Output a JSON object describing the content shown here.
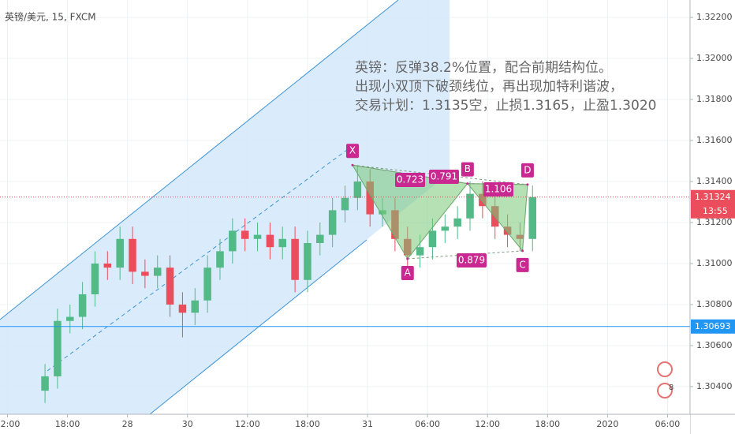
{
  "chart_data": {
    "type": "candlestick",
    "symbol": "英镑/美元, 15, FXCM",
    "annotation": [
      "英镑：反弹38.2%位置，配合前期结构位。",
      "出现小双顶下破颈线位，再出现加特利谐波，",
      "交易计划：1.3135空，止损1.3165，止盈1.3020"
    ],
    "x": [
      18,
      23,
      28,
      33,
      38,
      43,
      48,
      53,
      58,
      63,
      68,
      73,
      78,
      83,
      88,
      93,
      98,
      103,
      108,
      113,
      118,
      123,
      128,
      133,
      138,
      143,
      148,
      153,
      158,
      163,
      168,
      173,
      178,
      183,
      188,
      193,
      198,
      203,
      208,
      213
    ],
    "open": [
      1.3038,
      1.3045,
      1.3072,
      1.3074,
      1.3085,
      1.31,
      1.3098,
      1.3112,
      1.3096,
      1.3094,
      1.3098,
      1.308,
      1.3076,
      1.3082,
      1.3098,
      1.3106,
      1.3116,
      1.3112,
      1.3114,
      1.3108,
      1.3112,
      1.3092,
      1.311,
      1.3114,
      1.3126,
      1.3132,
      1.314,
      1.3124,
      1.3126,
      1.3112,
      1.3104,
      1.3108,
      1.3116,
      1.3118,
      1.3122,
      1.3134,
      1.3128,
      1.3118,
      1.3114,
      1.3112
    ],
    "high": [
      1.3051,
      1.3078,
      1.308,
      1.3091,
      1.3106,
      1.3106,
      1.3118,
      1.3118,
      1.3102,
      1.3104,
      1.3104,
      1.3086,
      1.3088,
      1.3104,
      1.3112,
      1.3122,
      1.3122,
      1.312,
      1.312,
      1.3118,
      1.3118,
      1.3116,
      1.312,
      1.3132,
      1.3138,
      1.3148,
      1.3146,
      1.3132,
      1.3132,
      1.3118,
      1.3114,
      1.3122,
      1.3124,
      1.3128,
      1.314,
      1.314,
      1.3134,
      1.3124,
      1.312,
      1.3138
    ],
    "low": [
      1.3032,
      1.3039,
      1.3066,
      1.3068,
      1.3079,
      1.3092,
      1.3092,
      1.309,
      1.3088,
      1.3088,
      1.3074,
      1.3064,
      1.307,
      1.3076,
      1.3092,
      1.31,
      1.3106,
      1.3106,
      1.3102,
      1.3102,
      1.3086,
      1.3086,
      1.3104,
      1.3108,
      1.312,
      1.3126,
      1.3118,
      1.3118,
      1.3106,
      1.3098,
      1.3098,
      1.3102,
      1.311,
      1.3112,
      1.3116,
      1.3122,
      1.3112,
      1.3108,
      1.3106,
      1.3106
    ],
    "close": [
      1.3045,
      1.3072,
      1.3074,
      1.3085,
      1.31,
      1.3098,
      1.3112,
      1.3096,
      1.3094,
      1.3098,
      1.308,
      1.3076,
      1.3082,
      1.3098,
      1.3106,
      1.3116,
      1.3112,
      1.3114,
      1.3108,
      1.3112,
      1.3092,
      1.311,
      1.3114,
      1.3126,
      1.3132,
      1.314,
      1.3124,
      1.3126,
      1.3112,
      1.3104,
      1.3108,
      1.3116,
      1.3118,
      1.3122,
      1.3134,
      1.3128,
      1.3118,
      1.3114,
      1.3112,
      1.31324
    ],
    "up_color": "#53b987",
    "down_color": "#eb4d5c",
    "xlim": [
      0,
      276
    ],
    "xticks": [
      {
        "value": 3,
        "label": "12:00"
      },
      {
        "value": 27,
        "label": "18:00"
      },
      {
        "value": 51,
        "label": "28"
      },
      {
        "value": 75,
        "label": "30"
      },
      {
        "value": 99,
        "label": "12:00"
      },
      {
        "value": 123,
        "label": "18:00"
      },
      {
        "value": 147,
        "label": "31"
      },
      {
        "value": 171,
        "label": "06:00"
      },
      {
        "value": 195,
        "label": "12:00"
      },
      {
        "value": 219,
        "label": "18:00"
      },
      {
        "value": 243,
        "label": "2020"
      },
      {
        "value": 267,
        "label": "06:00"
      }
    ],
    "ylim": [
      1.30265,
      1.32285
    ],
    "yticks": [
      {
        "value": 1.304,
        "label": "1.30400"
      },
      {
        "value": 1.306,
        "label": "1.30600"
      },
      {
        "value": 1.308,
        "label": "1.30800"
      },
      {
        "value": 1.31,
        "label": "1.31000"
      },
      {
        "value": 1.312,
        "label": "1.31200"
      },
      {
        "value": 1.314,
        "label": "1.31400"
      },
      {
        "value": 1.316,
        "label": "1.31600"
      },
      {
        "value": 1.318,
        "label": "1.31800"
      },
      {
        "value": 1.32,
        "label": "1.32000"
      },
      {
        "value": 1.322,
        "label": "1.32200"
      }
    ],
    "grid": true,
    "hline": 1.30693,
    "hline_color": "#2196f3",
    "last_price": 1.31324,
    "countdown": "13:55",
    "pattern": {
      "color": "#c8288f",
      "points": [
        {
          "label": "X",
          "x": 141,
          "y": 1.3148
        },
        {
          "label": "A",
          "x": 163,
          "y": 1.31023
        },
        {
          "label": "B",
          "x": 187,
          "y": 1.3139
        },
        {
          "label": "C",
          "x": 209,
          "y": 1.31062
        },
        {
          "label": "D",
          "x": 211,
          "y": 1.31385
        }
      ],
      "ratios": [
        "0.723",
        "0.791",
        "1.106",
        "0.879"
      ]
    },
    "event_count": "8"
  }
}
